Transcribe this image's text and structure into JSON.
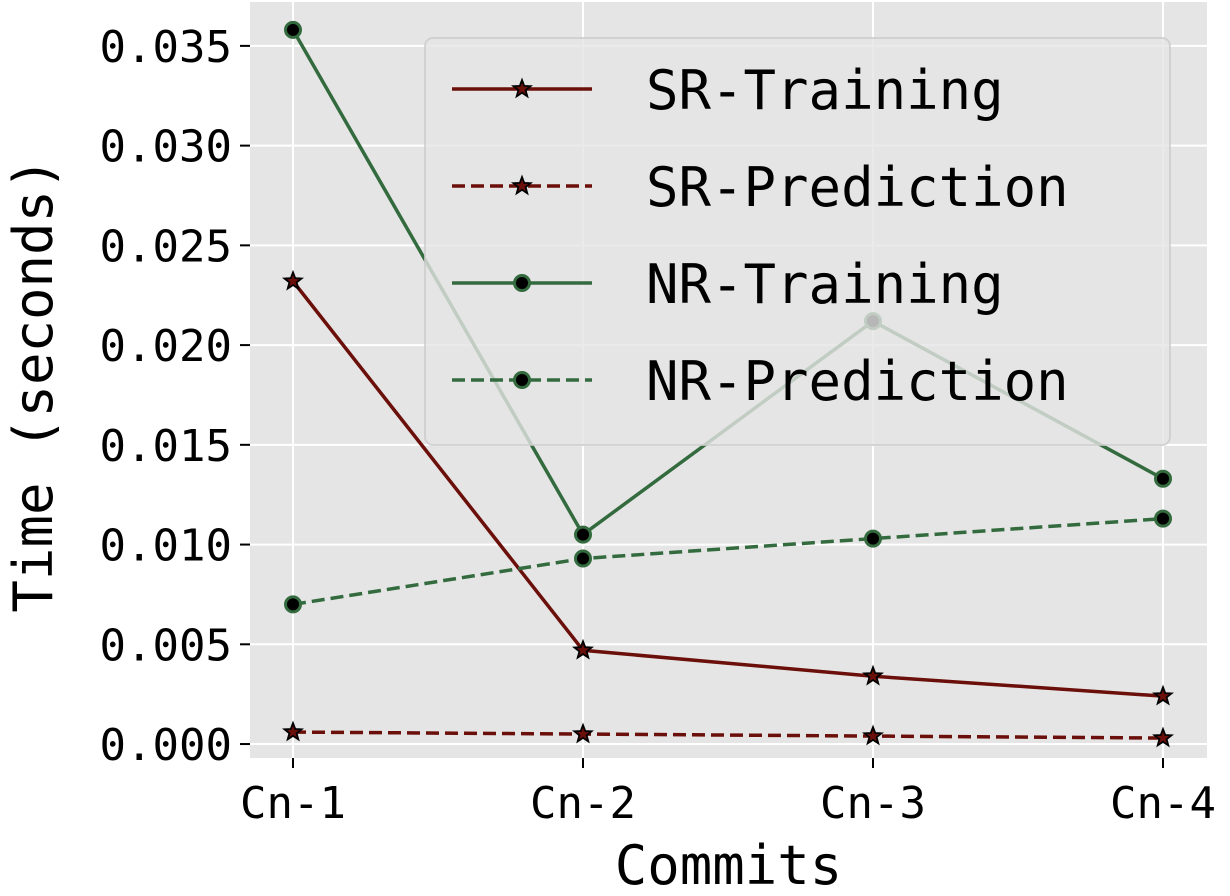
{
  "chart_data": {
    "type": "line",
    "title": "",
    "xlabel": "Commits",
    "ylabel": "Time (seconds)",
    "categories": [
      "Cn-1",
      "Cn-2",
      "Cn-3",
      "Cn-4"
    ],
    "ylim": [
      -0.0007,
      0.0372
    ],
    "yticks": [
      0.0,
      0.005,
      0.01,
      0.015,
      0.02,
      0.025,
      0.03,
      0.035
    ],
    "ytick_labels": [
      "0.000",
      "0.005",
      "0.010",
      "0.015",
      "0.020",
      "0.025",
      "0.030",
      "0.035"
    ],
    "grid": true,
    "legend_position": "top-right",
    "background": "#e5e5e5",
    "series": [
      {
        "name": "SR-Training",
        "values": [
          0.0232,
          0.0047,
          0.0034,
          0.0024
        ],
        "color": "#6b0f0a",
        "linestyle": "solid",
        "marker": "star"
      },
      {
        "name": "SR-Prediction",
        "values": [
          0.0006,
          0.0005,
          0.0004,
          0.0003
        ],
        "color": "#6b0f0a",
        "linestyle": "dashed",
        "marker": "star"
      },
      {
        "name": "NR-Training",
        "values": [
          0.0358,
          0.0105,
          0.0212,
          0.0133
        ],
        "color": "#336b3e",
        "linestyle": "solid",
        "marker": "circle"
      },
      {
        "name": "NR-Prediction",
        "values": [
          0.007,
          0.0093,
          0.0103,
          0.0113
        ],
        "color": "#336b3e",
        "linestyle": "dashed",
        "marker": "circle"
      }
    ]
  }
}
